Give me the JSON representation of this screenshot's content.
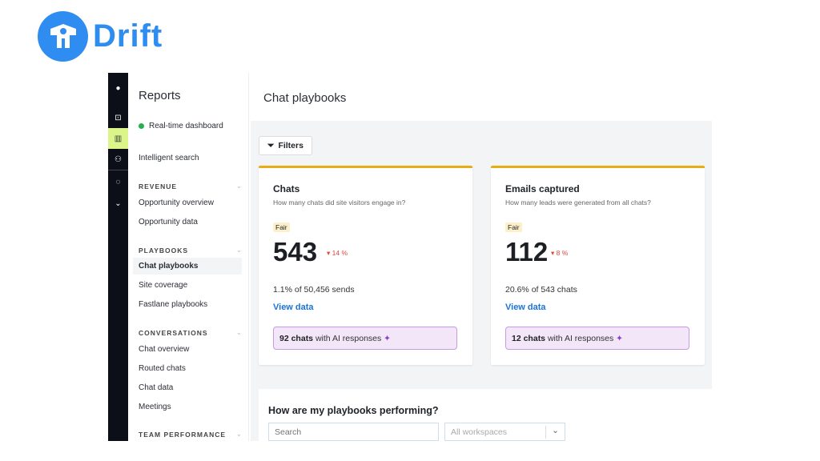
{
  "brand": {
    "name": "Drift",
    "color": "#2f8cf0"
  },
  "sidebar": {
    "title": "Reports",
    "realtime": "Real-time dashboard",
    "intelligent": "Intelligent search",
    "sections": [
      {
        "label": "REVENUE",
        "items": [
          "Opportunity overview",
          "Opportunity data"
        ]
      },
      {
        "label": "PLAYBOOKS",
        "items": [
          "Chat playbooks",
          "Site coverage",
          "Fastlane playbooks"
        ]
      },
      {
        "label": "CONVERSATIONS",
        "items": [
          "Chat overview",
          "Routed chats",
          "Chat data",
          "Meetings"
        ]
      },
      {
        "label": "TEAM PERFORMANCE",
        "items": []
      }
    ]
  },
  "main": {
    "title": "Chat playbooks",
    "filters": "Filters",
    "cards": [
      {
        "title": "Chats",
        "subtitle": "How many chats did site visitors engage in?",
        "badge": "Fair",
        "value": "543",
        "delta": "14 %",
        "sub": "1.1% of 50,456 sends",
        "link": "View data",
        "ai_count": "92 chats",
        "ai_text": "with AI responses"
      },
      {
        "title": "Emails captured",
        "subtitle": "How many leads were generated from all chats?",
        "badge": "Fair",
        "value": "112",
        "delta": "8 %",
        "sub": "20.6% of 543 chats",
        "link": "View data",
        "ai_count": "12 chats",
        "ai_text": "with AI responses"
      }
    ],
    "panel": {
      "title": "How are my playbooks performing?",
      "search_placeholder": "Search",
      "workspace": "All workspaces"
    }
  }
}
